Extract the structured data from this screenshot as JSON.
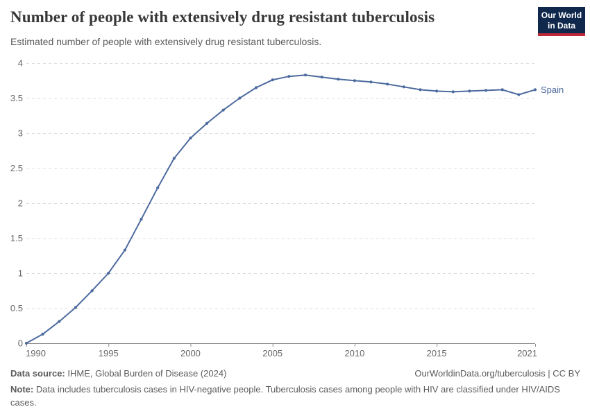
{
  "header": {
    "title": "Number of people with extensively drug resistant tuberculosis",
    "subtitle": "Estimated number of people with extensively drug resistant tuberculosis.",
    "logo": {
      "line1": "Our World",
      "line2": "in Data",
      "bg_color": "#0f284b",
      "accent_color": "#be2837"
    }
  },
  "chart_data": {
    "type": "line",
    "title": "Number of people with extensively drug resistant tuberculosis",
    "subtitle": "Estimated number of people with extensively drug resistant tuberculosis.",
    "x": [
      1990,
      1991,
      1992,
      1993,
      1994,
      1995,
      1996,
      1997,
      1998,
      1999,
      2000,
      2001,
      2002,
      2003,
      2004,
      2005,
      2006,
      2007,
      2008,
      2009,
      2010,
      2011,
      2012,
      2013,
      2014,
      2015,
      2016,
      2017,
      2018,
      2019,
      2020,
      2021
    ],
    "series": [
      {
        "name": "Spain",
        "color": "#4c6a9e",
        "values": [
          0,
          0.13,
          0.31,
          0.51,
          0.75,
          1.0,
          1.33,
          1.77,
          2.22,
          2.64,
          2.93,
          3.14,
          3.33,
          3.5,
          3.65,
          3.76,
          3.81,
          3.83,
          3.8,
          3.77,
          3.75,
          3.73,
          3.7,
          3.66,
          3.62,
          3.6,
          3.59,
          3.6,
          3.61,
          3.62,
          3.55,
          3.62
        ]
      }
    ],
    "xlabel": "",
    "ylabel": "",
    "ylim": [
      0,
      4
    ],
    "yticks": [
      0,
      0.5,
      1,
      1.5,
      2,
      2.5,
      3,
      3.5,
      4
    ],
    "xticks": [
      1990,
      1995,
      2000,
      2005,
      2010,
      2015,
      2021
    ],
    "grid": "horizontal-dashed",
    "grid_color": "#dcdcdc",
    "axis_color": "#8f8f8f",
    "legend_position": "end-of-line-label"
  },
  "footer": {
    "source_label": "Data source:",
    "source_text": " IHME, Global Burden of Disease (2024)",
    "rights": "OurWorldinData.org/tuberculosis | CC BY",
    "note_label": "Note:",
    "note_text": " Data includes tuberculosis cases in HIV-negative people. Tuberculosis cases among people with HIV are classified under HIV/AIDS cases."
  }
}
